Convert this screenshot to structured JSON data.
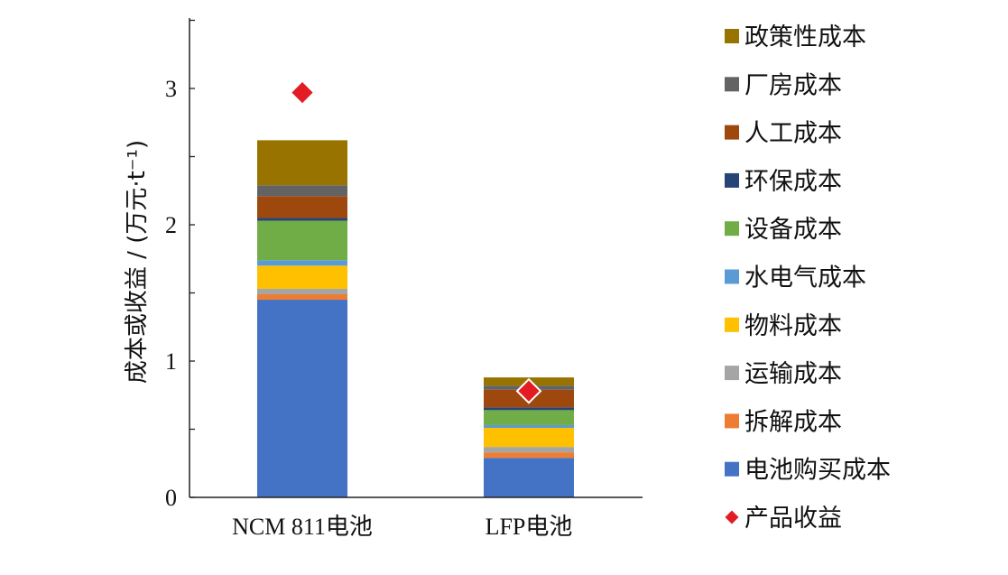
{
  "chart_data": {
    "type": "bar",
    "stacked": true,
    "categories": [
      "NCM 811电池",
      "LFP电池"
    ],
    "ylabel": "成本或收益 / (万元·t⁻¹)",
    "ylim": [
      0,
      3.5
    ],
    "yticks": [
      0,
      1,
      2,
      3
    ],
    "grid": false,
    "legend_position": "right",
    "series": [
      {
        "name": "电池购买成本",
        "color": "#4472C4",
        "values": [
          1.45,
          0.29
        ]
      },
      {
        "name": "拆解成本",
        "color": "#ED7D31",
        "values": [
          0.04,
          0.04
        ]
      },
      {
        "name": "运输成本",
        "color": "#A5A5A5",
        "values": [
          0.04,
          0.04
        ]
      },
      {
        "name": "物料成本",
        "color": "#FFC000",
        "values": [
          0.17,
          0.14
        ]
      },
      {
        "name": "水电气成本",
        "color": "#5B9BD5",
        "values": [
          0.04,
          0.02
        ]
      },
      {
        "name": "设备成本",
        "color": "#70AD47",
        "values": [
          0.29,
          0.11
        ]
      },
      {
        "name": "环保成本",
        "color": "#264478",
        "values": [
          0.02,
          0.02
        ]
      },
      {
        "name": "人工成本",
        "color": "#9E480E",
        "values": [
          0.16,
          0.13
        ]
      },
      {
        "name": "厂房成本",
        "color": "#636363",
        "values": [
          0.08,
          0.03
        ]
      },
      {
        "name": "政策性成本",
        "color": "#997300",
        "values": [
          0.33,
          0.06
        ]
      }
    ],
    "markers": {
      "name": "产品收益",
      "color": "#E31B23",
      "values": [
        2.97,
        0.78
      ]
    },
    "legend_order": [
      "政策性成本",
      "厂房成本",
      "人工成本",
      "环保成本",
      "设备成本",
      "水电气成本",
      "物料成本",
      "运输成本",
      "拆解成本",
      "电池购买成本",
      "产品收益"
    ]
  }
}
